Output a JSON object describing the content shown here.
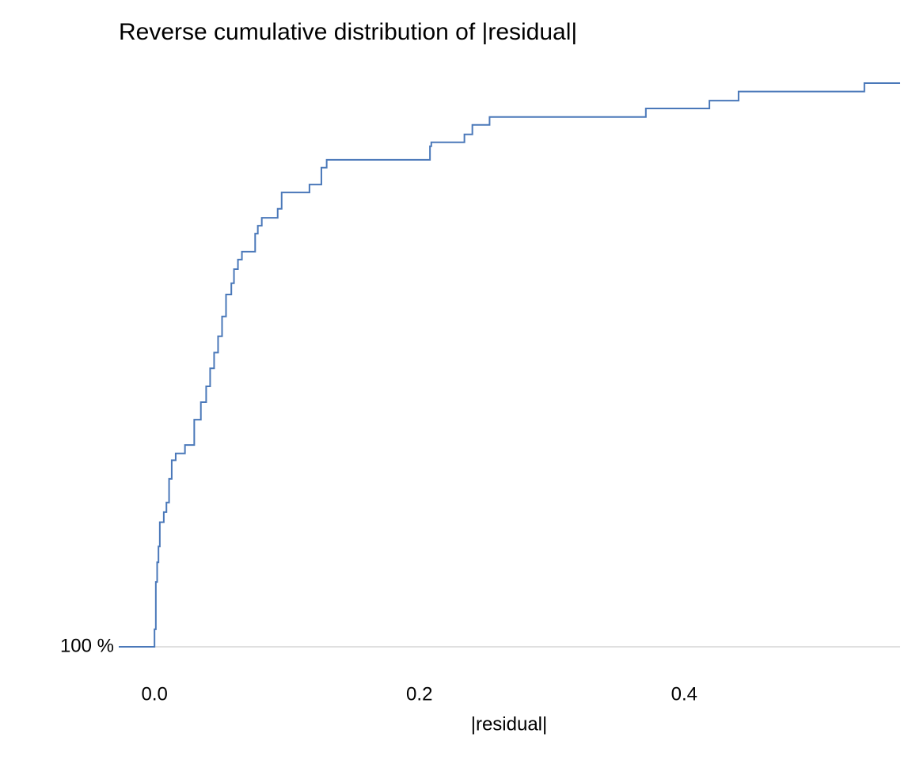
{
  "chart_data": {
    "type": "step",
    "title": "Reverse cumulative distribution of |residual|",
    "x_label": "|residual|",
    "x": [
      -0.027,
      0.0,
      0.0,
      0.001,
      0.002,
      0.003,
      0.004,
      0.007,
      0.009,
      0.011,
      0.013,
      0.016,
      0.023,
      0.03,
      0.035,
      0.039,
      0.042,
      0.045,
      0.048,
      0.051,
      0.054,
      0.058,
      0.06,
      0.063,
      0.066,
      0.076,
      0.078,
      0.081,
      0.093,
      0.096,
      0.117,
      0.126,
      0.13,
      0.208,
      0.209,
      0.234,
      0.24,
      0.253,
      0.371,
      0.419,
      0.441,
      0.536,
      0.563
    ],
    "values": [
      100,
      100,
      96.9,
      88.5,
      85.0,
      82.2,
      77.9,
      76.1,
      74.4,
      70.2,
      66.9,
      65.7,
      64.2,
      59.7,
      56.6,
      53.8,
      50.6,
      47.8,
      44.9,
      41.4,
      37.5,
      35.5,
      33.0,
      31.3,
      29.9,
      26.7,
      25.3,
      23.9,
      22.3,
      19.4,
      18.0,
      15.0,
      13.6,
      11.2,
      10.5,
      9.1,
      7.4,
      6.0,
      4.5,
      3.1,
      1.5,
      0.0,
      0.0
    ],
    "color": "#4a78b9",
    "xlim": [
      -0.027,
      0.563
    ],
    "ylim": [
      105,
      -5
    ],
    "xticks": [
      {
        "value": 0,
        "label": "0.0"
      },
      {
        "value": 0.2,
        "label": "0.2"
      },
      {
        "value": 0.4,
        "label": "0.4"
      }
    ],
    "yticks": [
      {
        "value": 100,
        "label": "100 %"
      }
    ],
    "grid": true
  }
}
